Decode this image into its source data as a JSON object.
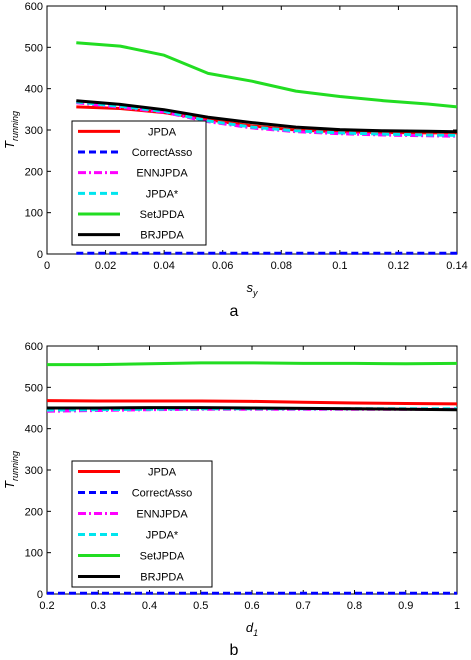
{
  "chart_data": [
    {
      "type": "line",
      "panel_label": "a",
      "xlabel": "s",
      "xlabel_sub": "y",
      "ylabel": "T",
      "ylabel_sub": "running",
      "xlim": [
        0,
        0.14
      ],
      "ylim": [
        0,
        600
      ],
      "xticks": [
        0,
        0.02,
        0.04,
        0.06,
        0.08,
        0.1,
        0.12,
        0.14
      ],
      "xtick_labels": [
        "0",
        "0.02",
        "0.04",
        "0.06",
        "0.08",
        "0.1",
        "0.12",
        "0.14"
      ],
      "yticks": [
        0,
        100,
        200,
        300,
        400,
        500,
        600
      ],
      "ytick_labels": [
        "0",
        "100",
        "200",
        "300",
        "400",
        "500",
        "600"
      ],
      "grid": false,
      "legend_position": "lower-left",
      "x": [
        0.01,
        0.025,
        0.04,
        0.055,
        0.07,
        0.085,
        0.1,
        0.115,
        0.13,
        0.14
      ],
      "series": [
        {
          "name": "JPDA",
          "color": "#ff0000",
          "dash": "solid",
          "values": [
            356,
            352,
            342,
            325,
            310,
            300,
            296,
            294,
            293,
            293
          ]
        },
        {
          "name": "CorrectAsso",
          "color": "#0000ff",
          "dash": "dash",
          "values": [
            2,
            2,
            2,
            2,
            2,
            2,
            2,
            2,
            2,
            2
          ]
        },
        {
          "name": "ENNJPDA",
          "color": "#ff00ff",
          "dash": "dashdot",
          "values": [
            366,
            355,
            343,
            320,
            305,
            296,
            291,
            288,
            286,
            285
          ]
        },
        {
          "name": "JPDA*",
          "color": "#00e5ee",
          "dash": "dash",
          "values": [
            368,
            357,
            345,
            322,
            307,
            298,
            293,
            290,
            288,
            287
          ]
        },
        {
          "name": "SetJPDA",
          "color": "#22dd22",
          "dash": "solid",
          "values": [
            511,
            503,
            481,
            437,
            418,
            394,
            381,
            371,
            363,
            356
          ]
        },
        {
          "name": "BRJPDA",
          "color": "#000000",
          "dash": "solid",
          "values": [
            371,
            362,
            349,
            331,
            318,
            307,
            301,
            298,
            297,
            296
          ]
        }
      ]
    },
    {
      "type": "line",
      "panel_label": "b",
      "xlabel": "d",
      "xlabel_sub": "1",
      "ylabel": "T",
      "ylabel_sub": "running",
      "xlim": [
        0.2,
        1
      ],
      "ylim": [
        0,
        600
      ],
      "xticks": [
        0.2,
        0.3,
        0.4,
        0.5,
        0.6,
        0.7,
        0.8,
        0.9,
        1
      ],
      "xtick_labels": [
        "0.2",
        "0.3",
        "0.4",
        "0.5",
        "0.6",
        "0.7",
        "0.8",
        "0.9",
        "1"
      ],
      "yticks": [
        0,
        100,
        200,
        300,
        400,
        500,
        600
      ],
      "ytick_labels": [
        "0",
        "100",
        "200",
        "300",
        "400",
        "500",
        "600"
      ],
      "grid": false,
      "legend_position": "lower-left",
      "x": [
        0.2,
        0.3,
        0.4,
        0.5,
        0.6,
        0.7,
        0.8,
        0.9,
        1.0
      ],
      "series": [
        {
          "name": "JPDA",
          "color": "#ff0000",
          "dash": "solid",
          "values": [
            468,
            467,
            467,
            467,
            466,
            464,
            462,
            461,
            460
          ]
        },
        {
          "name": "CorrectAsso",
          "color": "#0000ff",
          "dash": "dash",
          "values": [
            2,
            2,
            2,
            2,
            2,
            2,
            2,
            2,
            2
          ]
        },
        {
          "name": "ENNJPDA",
          "color": "#ff00ff",
          "dash": "dashdot",
          "values": [
            442,
            444,
            446,
            447,
            447,
            447,
            447,
            447,
            447
          ]
        },
        {
          "name": "JPDA*",
          "color": "#00e5ee",
          "dash": "dash",
          "values": [
            445,
            446,
            447,
            448,
            448,
            448,
            448,
            448,
            448
          ]
        },
        {
          "name": "SetJPDA",
          "color": "#22dd22",
          "dash": "solid",
          "values": [
            555,
            555,
            557,
            559,
            559,
            558,
            558,
            557,
            558
          ]
        },
        {
          "name": "BRJPDA",
          "color": "#000000",
          "dash": "solid",
          "values": [
            450,
            450,
            451,
            451,
            450,
            449,
            448,
            447,
            446
          ]
        }
      ]
    }
  ]
}
